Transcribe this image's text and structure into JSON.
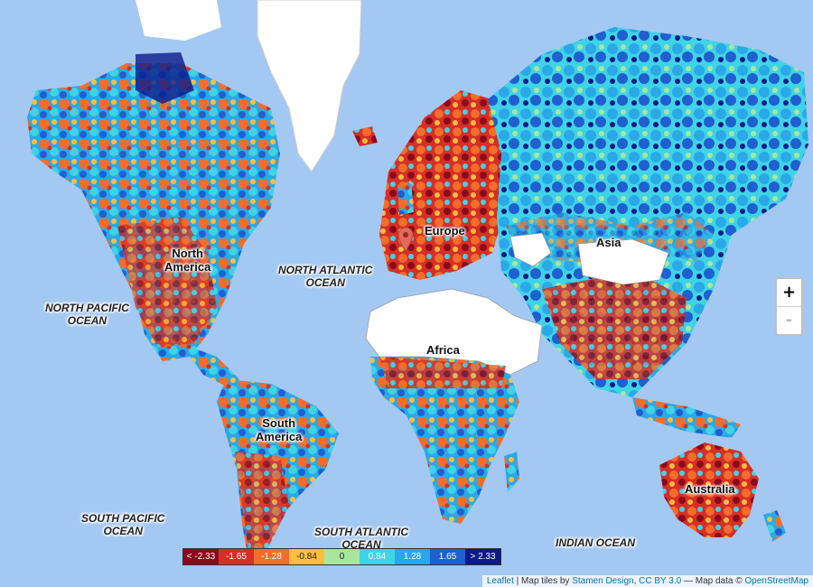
{
  "map": {
    "continents": [
      {
        "name": "North\nAmerica"
      },
      {
        "name": "South\nAmerica"
      },
      {
        "name": "Europe"
      },
      {
        "name": "Africa"
      },
      {
        "name": "Asia"
      },
      {
        "name": "Australia"
      }
    ],
    "oceans": [
      {
        "name": "NORTH PACIFIC\nOCEAN"
      },
      {
        "name": "NORTH ATLANTIC\nOCEAN"
      },
      {
        "name": "SOUTH PACIFIC\nOCEAN"
      },
      {
        "name": "SOUTH ATLANTIC\nOCEAN"
      },
      {
        "name": "INDIAN OCEAN"
      }
    ],
    "zoom": {
      "in": "+",
      "out": "-"
    },
    "legend": [
      {
        "label": "< -2.33",
        "color": "#8b0a1a"
      },
      {
        "label": "-1.65",
        "color": "#d62f27"
      },
      {
        "label": "-1.28",
        "color": "#f46d2b"
      },
      {
        "label": "-0.84",
        "color": "#fdbe3b"
      },
      {
        "label": "0",
        "color": "#a8e6a0"
      },
      {
        "label": "0.84",
        "color": "#3fd3e6"
      },
      {
        "label": "1.28",
        "color": "#2aa8e8"
      },
      {
        "label": "1.65",
        "color": "#1f5fd0"
      },
      {
        "label": "> 2.33",
        "color": "#0d1a8a"
      }
    ],
    "attribution": {
      "leaflet": "Leaflet",
      "sep1": " | Map tiles by ",
      "stamen": "Stamen Design",
      "sep2": ", ",
      "cc": "CC BY 3.0",
      "sep3": " — Map data © ",
      "osm": "OpenStreetMap"
    },
    "marker_icon": "map-pin-icon"
  }
}
